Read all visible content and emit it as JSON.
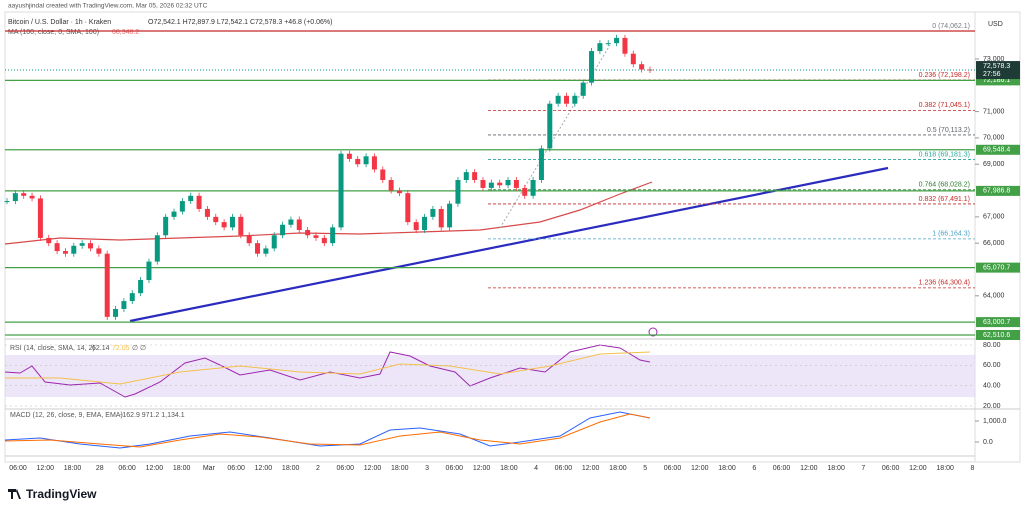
{
  "header": {
    "credit": "aayushjindal created with TradingView.com, Mar 05, 2026 02:32 UTC",
    "symbol": "Bitcoin / U.S. Dollar · 1h · Kraken",
    "ohlc": "O72,542.1 H72,897.9 L72,542.1 C72,578.3 +46.8 (+0.06%)",
    "ma": "MA (100, close, 0, SMA, 100)",
    "ma_value": "68,348.2"
  },
  "price_axis": {
    "currency": "USD",
    "ylim": [
      74062.1,
      62510.6
    ],
    "ticks": [
      {
        "value": 73000,
        "label": "73,000"
      },
      {
        "value": 71000,
        "label": "71,000"
      },
      {
        "value": 70000,
        "label": "70,000"
      },
      {
        "value": 69000,
        "label": "69,000"
      },
      {
        "value": 67000,
        "label": "67,000"
      },
      {
        "value": 66000,
        "label": "66,000"
      },
      {
        "value": 64000,
        "label": "64,000"
      }
    ],
    "current": {
      "value": 72578.3,
      "label": "72,578.3",
      "countdown": "27:56"
    }
  },
  "levels": [
    {
      "value": 74062.1,
      "color": "#c62828"
    },
    {
      "value": 72186.1,
      "label": "72,186.1",
      "color": "#43a047"
    },
    {
      "value": 69548.4,
      "label": "69,548.4",
      "color": "#43a047"
    },
    {
      "value": 67986.8,
      "label": "67,986.8",
      "color": "#43a047"
    },
    {
      "value": 65070.7,
      "label": "65,070.7",
      "color": "#43a047"
    },
    {
      "value": 63000.7,
      "label": "63,000.7",
      "color": "#43a047"
    },
    {
      "value": 62510.6,
      "label": "62,510.6",
      "color": "#43a047"
    }
  ],
  "fib": [
    {
      "value": 74062.1,
      "label": "0 (74,062.1)",
      "color": "#787b86"
    },
    {
      "value": 72198.2,
      "label": "0.236 (72,198.2)",
      "color": "#c62828"
    },
    {
      "value": 71045.1,
      "label": "0.382 (71,045.1)",
      "color": "#c62828"
    },
    {
      "value": 70113.2,
      "label": "0.5 (70,113.2)",
      "color": "#5d606b"
    },
    {
      "value": 69181.3,
      "label": "0.618 (69,181.3)",
      "color": "#26a69a"
    },
    {
      "value": 68028.2,
      "label": "0.764 (68,028.2)",
      "color": "#2e7d32"
    },
    {
      "value": 67491.1,
      "label": "0.832 (67,491.1)",
      "color": "#c62828"
    },
    {
      "value": 66164.3,
      "label": "1 (66,164.3)",
      "color": "#4aa3c7"
    },
    {
      "value": 64300.4,
      "label": "1.236 (64,300.4)",
      "color": "#c62828"
    }
  ],
  "candles": {
    "close": [
      67600,
      67900,
      67800,
      67700,
      66200,
      66000,
      65700,
      65600,
      65900,
      66000,
      65800,
      65600,
      63200,
      63500,
      63800,
      64100,
      64600,
      65300,
      66300,
      67000,
      67200,
      67600,
      67800,
      67300,
      67000,
      66800,
      66600,
      67000,
      66300,
      66000,
      65600,
      65800,
      66300,
      66700,
      66900,
      66500,
      66300,
      66200,
      66000,
      66600,
      69400,
      69200,
      69000,
      69300,
      68800,
      68400,
      68000,
      67900,
      66800,
      66500,
      67000,
      67300,
      66600,
      67500,
      68400,
      68700,
      68400,
      68100,
      68300,
      68200,
      68400,
      68100,
      67800,
      68400,
      69600,
      71300,
      71600,
      71300,
      71600,
      72100,
      73300,
      73600,
      73600,
      73800,
      73200,
      72800,
      72600,
      72578.3
    ]
  },
  "rsi": {
    "legend": "RSI (14, close, SMA, 14, 2)",
    "values": "62.14",
    "ma_value": "72.05",
    "extra": "∅ ∅",
    "ticks": [
      {
        "value": 80,
        "label": "80.00"
      },
      {
        "value": 60,
        "label": "60.00"
      },
      {
        "value": 40,
        "label": "40.00"
      },
      {
        "value": 20,
        "label": "20.00"
      }
    ]
  },
  "macd": {
    "legend": "MACD (12, 26, close, 9, EMA, EMA)",
    "values": "-162.9 971.2 1,134.1",
    "ticks": [
      {
        "value": 1000,
        "label": "1,000.0"
      },
      {
        "value": 0,
        "label": "0.0"
      }
    ]
  },
  "time_axis": [
    "06:00",
    "12:00",
    "18:00",
    "28",
    "06:00",
    "12:00",
    "18:00",
    "Mar",
    "06:00",
    "12:00",
    "18:00",
    "2",
    "06:00",
    "12:00",
    "18:00",
    "3",
    "06:00",
    "12:00",
    "18:00",
    "4",
    "06:00",
    "12:00",
    "18:00",
    "5",
    "06:00",
    "12:00",
    "18:00",
    "6",
    "06:00",
    "12:00",
    "18:00",
    "7",
    "06:00",
    "12:00",
    "18:00",
    "8"
  ],
  "footer": {
    "logo": "TradingView"
  }
}
